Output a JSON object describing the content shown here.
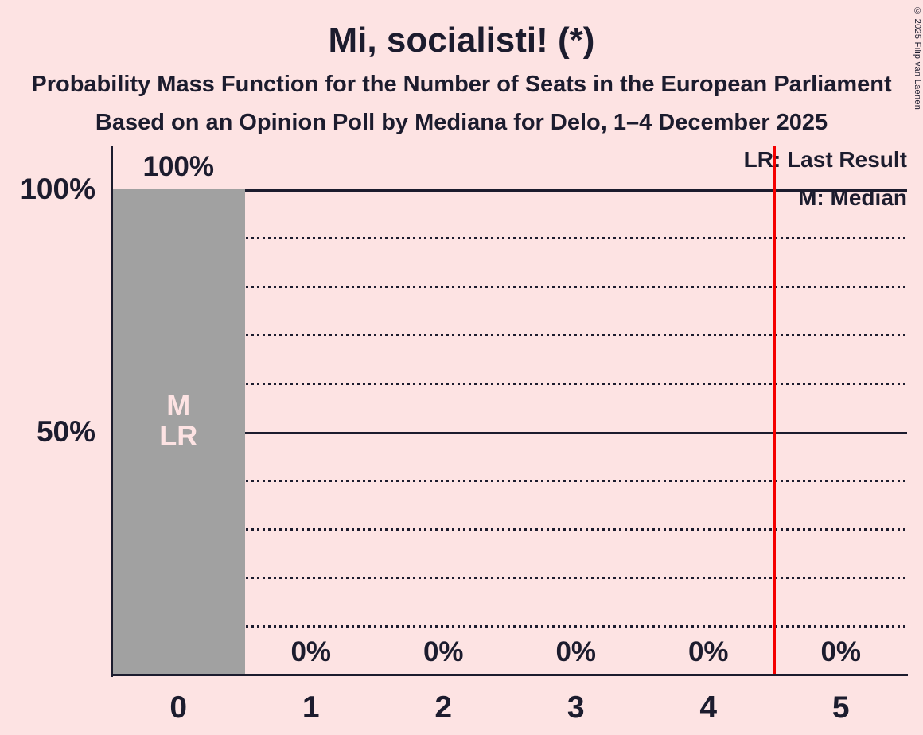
{
  "title": "Mi, socialisti! (*)",
  "subtitles": [
    "Probability Mass Function for the Number of Seats in the European Parliament",
    "Based on an Opinion Poll by Mediana for Delo, 1–4 December 2025"
  ],
  "legend": {
    "last_result": "LR: Last Result",
    "median": "M: Median"
  },
  "copyright": "© 2025 Filip van Laenen",
  "y_axis": {
    "ticks": [
      "100%",
      "50%"
    ]
  },
  "chart_data": {
    "type": "bar",
    "title": "Mi, socialisti! (*)",
    "categories": [
      "0",
      "1",
      "2",
      "3",
      "4",
      "5"
    ],
    "values": [
      100,
      0,
      0,
      0,
      0,
      0
    ],
    "bar_value_labels": [
      "100%",
      "0%",
      "0%",
      "0%",
      "0%",
      "0%"
    ],
    "ylim": [
      0,
      100
    ],
    "y_tick_labels_pct": [
      100,
      50
    ],
    "solid_gridlines_pct": [
      100,
      50
    ],
    "dotted_gridlines_pct": [
      90,
      80,
      70,
      60,
      40,
      30,
      20,
      10
    ],
    "median_annotation": "M",
    "last_result_annotation": "LR",
    "annotated_category_index": 0,
    "red_line_at_seats": 4.5,
    "legend_position": "top-right",
    "grid": "horizontal"
  },
  "colors": {
    "background": "#fde3e3",
    "text": "#1c1c2e",
    "bar": "#a1a1a1",
    "bar_annotation": "#fde3e3",
    "red_line": "#f40000"
  }
}
